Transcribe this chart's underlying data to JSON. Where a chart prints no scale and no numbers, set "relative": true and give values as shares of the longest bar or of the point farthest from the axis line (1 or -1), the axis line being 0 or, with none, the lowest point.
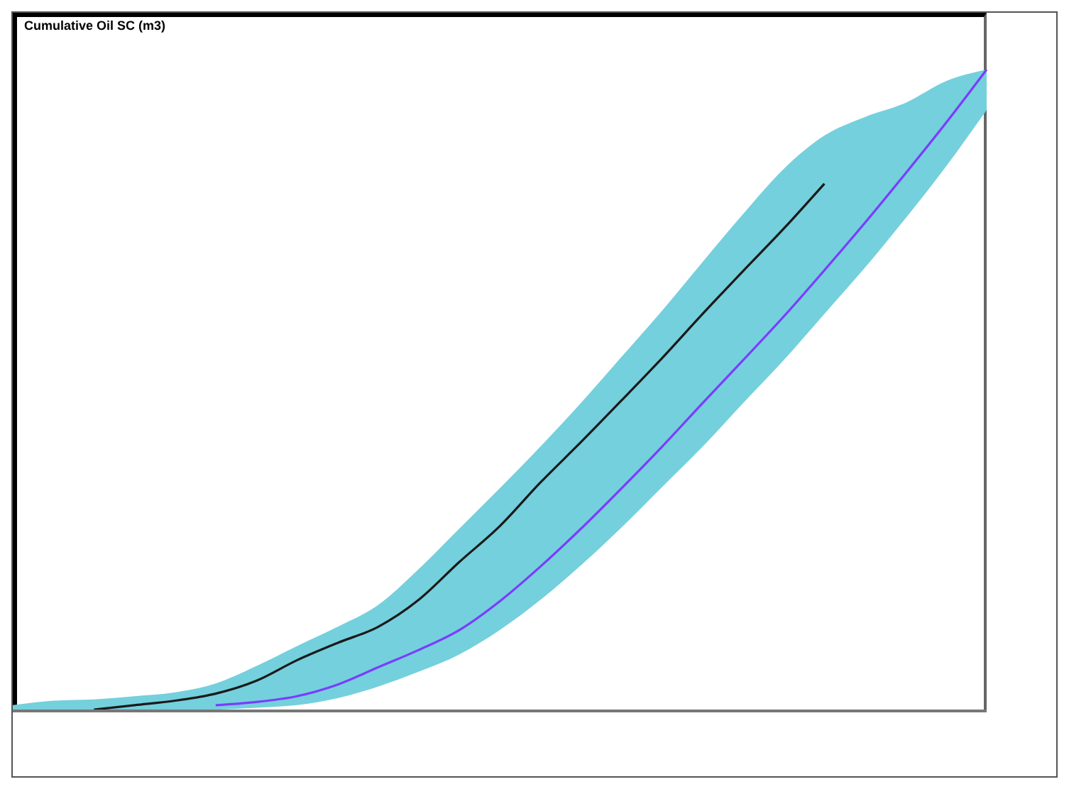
{
  "chart_data": {
    "type": "line",
    "title": "Cumulative Oil SC (m3)",
    "relative": true,
    "categories": [
      null,
      null,
      null,
      null,
      null,
      null,
      null,
      null,
      null,
      null,
      null,
      null,
      null,
      null,
      null,
      null,
      null,
      null,
      null,
      null,
      null,
      null,
      null,
      null,
      null
    ],
    "series": [
      {
        "color": "#1a1a1a",
        "values": [
          null,
          null,
          0.002,
          0.009,
          0.016,
          0.027,
          0.047,
          0.079,
          0.106,
          0.131,
          0.173,
          0.232,
          0.288,
          0.356,
          0.419,
          0.484,
          0.55,
          0.619,
          0.686,
          0.752,
          0.822,
          null,
          null,
          null,
          null
        ]
      },
      {
        "color": "#7b3cff",
        "values": [
          null,
          null,
          null,
          null,
          null,
          0.009,
          0.014,
          0.023,
          0.041,
          0.068,
          0.095,
          0.126,
          0.171,
          0.225,
          0.284,
          0.347,
          0.412,
          0.48,
          0.547,
          0.615,
          0.687,
          0.761,
          0.838,
          0.917,
          1
        ],
        "upper": [
          0.009,
          0.016,
          0.018,
          0.023,
          0.029,
          0.043,
          0.07,
          0.101,
          0.131,
          0.165,
          0.221,
          0.284,
          0.347,
          0.412,
          0.48,
          0.552,
          0.624,
          0.7,
          0.775,
          0.845,
          0.897,
          0.926,
          0.948,
          0.982,
          1
        ],
        "lower": [
          0,
          0,
          0,
          0,
          0,
          0.002,
          0.005,
          0.009,
          0.02,
          0.038,
          0.061,
          0.088,
          0.126,
          0.173,
          0.227,
          0.286,
          0.349,
          0.412,
          0.48,
          0.547,
          0.619,
          0.691,
          0.768,
          0.849,
          0.937
        ]
      }
    ]
  }
}
